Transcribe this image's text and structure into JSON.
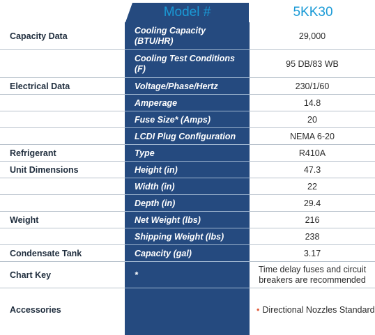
{
  "header": {
    "model_label": "Model #",
    "model_value": "5KK30"
  },
  "rows": [
    {
      "category": "Capacity Data",
      "label": "Cooling Capacity (BTU/HR)",
      "value": "29,000"
    },
    {
      "category": "",
      "label": "Cooling Test Conditions (F)",
      "value": "95 DB/83 WB"
    },
    {
      "category": "Electrical Data",
      "label": "Voltage/Phase/Hertz",
      "value": "230/1/60"
    },
    {
      "category": "",
      "label": "Amperage",
      "value": "14.8"
    },
    {
      "category": "",
      "label": "Fuse Size* (Amps)",
      "value": "20"
    },
    {
      "category": "",
      "label": "LCDI Plug Configuration",
      "value": "NEMA 6-20"
    },
    {
      "category": "Refrigerant",
      "label": "Type",
      "value": "R410A"
    },
    {
      "category": "Unit Dimensions",
      "label": "Height (in)",
      "value": "47.3"
    },
    {
      "category": "",
      "label": "Width (in)",
      "value": "22"
    },
    {
      "category": "",
      "label": "Depth (in)",
      "value": "29.4"
    },
    {
      "category": "Weight",
      "label": "Net Weight (lbs)",
      "value": "216"
    },
    {
      "category": "",
      "label": "Shipping Weight (lbs)",
      "value": "238"
    },
    {
      "category": "Condensate Tank",
      "label": "Capacity (gal)",
      "value": "3.17"
    },
    {
      "category": "Chart Key",
      "label": "*",
      "value": "Time delay fuses and circuit breakers are recommended"
    },
    {
      "category": "Accessories",
      "label": "",
      "value": "Directional Nozzles Standard"
    }
  ],
  "colors": {
    "column_blue": "#254a7f",
    "header_blue": "#1a9ad6",
    "bullet": "#e05a3a"
  }
}
